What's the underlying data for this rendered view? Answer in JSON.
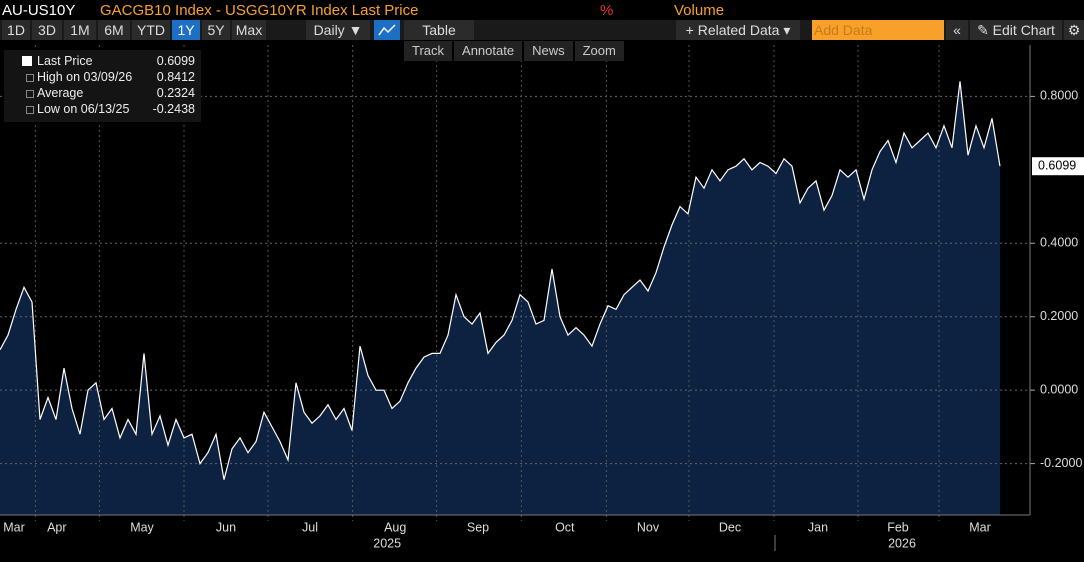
{
  "header": {
    "ticker": "AU-US10Y",
    "description": "GACGB10 Index - USGG10YR Index Last Price",
    "unit": "%",
    "volume": "Volume"
  },
  "toolbar": {
    "ranges": [
      "1D",
      "3D",
      "1M",
      "6M",
      "YTD",
      "1Y",
      "5Y",
      "Max"
    ],
    "selected_range": "1Y",
    "frequency": "Daily ▼",
    "table": "Table",
    "related": "+ Related Data ▾",
    "add_data": "Add Data",
    "collapse": "«",
    "edit": "✎ Edit Chart",
    "settings": "⚙"
  },
  "tools": [
    "Track",
    "Annotate",
    "News",
    "Zoom"
  ],
  "legend": [
    {
      "label": "Last Price",
      "value": "0.6099"
    },
    {
      "label": "High on 03/09/26",
      "value": "0.8412"
    },
    {
      "label": "Average",
      "value": "0.2324"
    },
    {
      "label": "Low on 06/13/25",
      "value": "-0.2438"
    }
  ],
  "chart_data": {
    "type": "area",
    "color": "#ffffff",
    "fill": "#0c2240",
    "values": [
      0.11,
      0.15,
      0.22,
      0.28,
      0.24,
      -0.08,
      -0.02,
      -0.08,
      0.06,
      -0.05,
      -0.12,
      0.0,
      0.02,
      -0.08,
      -0.05,
      -0.13,
      -0.08,
      -0.12,
      0.1,
      -0.12,
      -0.07,
      -0.15,
      -0.08,
      -0.13,
      -0.12,
      -0.2,
      -0.17,
      -0.12,
      -0.2438,
      -0.16,
      -0.13,
      -0.17,
      -0.14,
      -0.06,
      -0.1,
      -0.14,
      -0.19,
      0.02,
      -0.06,
      -0.09,
      -0.07,
      -0.04,
      -0.08,
      -0.05,
      -0.11,
      0.12,
      0.04,
      0.0,
      0.0,
      -0.05,
      -0.03,
      0.02,
      0.06,
      0.09,
      0.1,
      0.1,
      0.15,
      0.26,
      0.2,
      0.18,
      0.21,
      0.1,
      0.13,
      0.15,
      0.19,
      0.26,
      0.24,
      0.18,
      0.19,
      0.33,
      0.2,
      0.15,
      0.17,
      0.15,
      0.12,
      0.18,
      0.23,
      0.22,
      0.26,
      0.28,
      0.3,
      0.27,
      0.32,
      0.39,
      0.45,
      0.5,
      0.48,
      0.58,
      0.55,
      0.6,
      0.57,
      0.6,
      0.61,
      0.63,
      0.6,
      0.62,
      0.61,
      0.59,
      0.63,
      0.61,
      0.51,
      0.55,
      0.57,
      0.49,
      0.53,
      0.6,
      0.58,
      0.6,
      0.52,
      0.6,
      0.65,
      0.68,
      0.62,
      0.7,
      0.66,
      0.68,
      0.7,
      0.66,
      0.72,
      0.66,
      0.8412,
      0.64,
      0.72,
      0.66,
      0.74,
      0.6099
    ],
    "xlim": [
      0,
      128.75
    ],
    "xticks": [
      {
        "value": 1.75,
        "label": "Mar"
      },
      {
        "value": 7.1,
        "label": "Apr"
      },
      {
        "value": 17.75,
        "label": "May"
      },
      {
        "value": 28.25,
        "label": "Jun"
      },
      {
        "value": 38.75,
        "label": "Jul"
      },
      {
        "value": 49.4,
        "label": "Aug"
      },
      {
        "value": 59.75,
        "label": "Sep"
      },
      {
        "value": 70.6,
        "label": "Oct"
      },
      {
        "value": 81,
        "label": "Nov"
      },
      {
        "value": 91.25,
        "label": "Dec"
      },
      {
        "value": 102.25,
        "label": "Jan"
      },
      {
        "value": 112.25,
        "label": "Feb"
      },
      {
        "value": 122.5,
        "label": "Mar"
      }
    ],
    "years": [
      {
        "value": 48.4,
        "label": "2025"
      },
      {
        "value": 112.75,
        "label": "2026"
      }
    ],
    "ylim": [
      -0.34,
      0.94
    ],
    "yticks": [
      {
        "value": -0.2,
        "label": "-0.2000"
      },
      {
        "value": 0,
        "label": "0.0000"
      },
      {
        "value": 0.2,
        "label": "0.2000"
      },
      {
        "value": 0.4,
        "label": "0.4000"
      },
      {
        "value": 0.8,
        "label": "0.8000"
      }
    ],
    "grid": true
  }
}
